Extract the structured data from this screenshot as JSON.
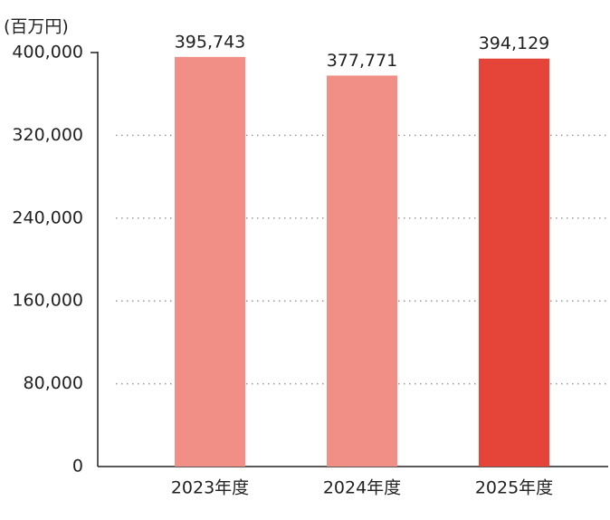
{
  "chart_data": {
    "type": "bar",
    "y_axis_label": "(百万円)",
    "categories": [
      "2023年度",
      "2024年度",
      "2025年度"
    ],
    "values": [
      395743,
      377771,
      394129
    ],
    "value_labels": [
      "395,743",
      "377,771",
      "394,129"
    ],
    "colors": [
      "#f18f87",
      "#f18f87",
      "#e54538"
    ],
    "ylim": [
      0,
      400000
    ],
    "yticks": [
      0,
      {
        "value": 80000,
        "label": "80,000"
      },
      {
        "value": 160000,
        "label": "160,000"
      },
      {
        "value": 240000,
        "label": "240,000"
      },
      {
        "value": 320000,
        "label": "320,000"
      },
      {
        "value": 400000,
        "label": "400,000"
      }
    ],
    "grid": true
  }
}
